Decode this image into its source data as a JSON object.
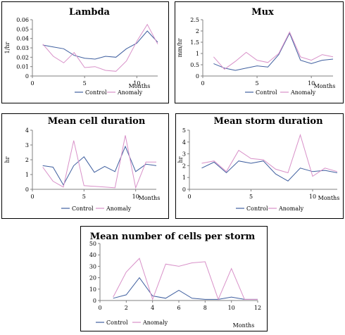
{
  "colors": {
    "control": "#3f5f9f",
    "anomaly": "#d890c8",
    "frame": "#000000",
    "axis": "#808080"
  },
  "chart_data": [
    {
      "type": "line",
      "title": "Lambda",
      "ylabel": "1/hr",
      "xlabel": "Months",
      "xlim": [
        0,
        12
      ],
      "ylim": [
        0,
        0.06
      ],
      "xticks": [
        0,
        5,
        10
      ],
      "xtick_labels": [
        "0",
        "5",
        "10"
      ],
      "yticks": [
        0,
        0.01,
        0.02,
        0.03,
        0.04,
        0.05,
        0.06
      ],
      "ytick_labels": [
        "0",
        "0.01",
        "0.02",
        "0.03",
        "0.04",
        "0.05",
        "0.06"
      ],
      "x": [
        1,
        2,
        3,
        4,
        5,
        6,
        7,
        8,
        9,
        10,
        11,
        12
      ],
      "legend_position": "bottom",
      "series": [
        {
          "name": "Control",
          "color_key": "control",
          "values": [
            0.033,
            0.031,
            0.029,
            0.022,
            0.019,
            0.018,
            0.021,
            0.02,
            0.029,
            0.035,
            0.048,
            0.036
          ]
        },
        {
          "name": "Anomaly",
          "color_key": "anomaly",
          "values": [
            0.034,
            0.021,
            0.014,
            0.025,
            0.009,
            0.01,
            0.006,
            0.005,
            0.016,
            0.037,
            0.055,
            0.034
          ]
        }
      ]
    },
    {
      "type": "line",
      "title": "Mux",
      "ylabel": "mm/hr",
      "xlabel": "Months",
      "xlim": [
        0,
        12
      ],
      "ylim": [
        0,
        2.5
      ],
      "xticks": [
        0,
        5,
        10
      ],
      "xtick_labels": [
        "0",
        "5",
        "10"
      ],
      "yticks": [
        0,
        0.5,
        1,
        1.5,
        2,
        2.5
      ],
      "ytick_labels": [
        "0",
        "0.5",
        "1",
        "1.5",
        "2",
        "2.5"
      ],
      "x": [
        1,
        2,
        3,
        4,
        5,
        6,
        7,
        8,
        9,
        10,
        11,
        12
      ],
      "legend_position": "bottom",
      "series": [
        {
          "name": "Control",
          "color_key": "control",
          "values": [
            0.55,
            0.35,
            0.25,
            0.35,
            0.45,
            0.4,
            0.95,
            1.9,
            0.7,
            0.55,
            0.7,
            0.75
          ]
        },
        {
          "name": "Anomaly",
          "color_key": "anomaly",
          "values": [
            0.85,
            0.3,
            0.65,
            1.05,
            0.7,
            0.6,
            1.0,
            1.95,
            0.85,
            0.7,
            0.95,
            0.85
          ]
        }
      ]
    },
    {
      "type": "line",
      "title": "Mean cell duration",
      "ylabel": "hr",
      "xlabel": "Months",
      "xlim": [
        0,
        12
      ],
      "ylim": [
        0,
        4
      ],
      "xticks": [
        0,
        5,
        10
      ],
      "xtick_labels": [
        "0",
        "5",
        "10"
      ],
      "yticks": [
        0,
        1,
        2,
        3,
        4
      ],
      "ytick_labels": [
        "0",
        "1",
        "2",
        "3",
        "4"
      ],
      "x": [
        1,
        2,
        3,
        4,
        5,
        6,
        7,
        8,
        9,
        10,
        11,
        12
      ],
      "legend_position": "bottom",
      "series": [
        {
          "name": "Control",
          "color_key": "control",
          "values": [
            1.6,
            1.5,
            0.3,
            1.6,
            2.2,
            1.15,
            1.55,
            1.2,
            2.9,
            1.2,
            1.7,
            1.6
          ]
        },
        {
          "name": "Anomaly",
          "color_key": "anomaly",
          "values": [
            1.5,
            0.55,
            0.15,
            3.3,
            0.25,
            0.2,
            0.15,
            0.1,
            3.65,
            0.1,
            1.85,
            1.85
          ]
        }
      ]
    },
    {
      "type": "line",
      "title": "Mean storm duration",
      "ylabel": "hr",
      "xlabel": "Months",
      "xlim": [
        0,
        12
      ],
      "ylim": [
        0,
        5
      ],
      "xticks": [
        0,
        5,
        10
      ],
      "xtick_labels": [
        "0",
        "5",
        "10"
      ],
      "yticks": [
        0,
        1,
        2,
        3,
        4,
        5
      ],
      "ytick_labels": [
        "0",
        "1",
        "2",
        "3",
        "4",
        "5"
      ],
      "x": [
        1,
        2,
        3,
        4,
        5,
        6,
        7,
        8,
        9,
        10,
        11,
        12
      ],
      "legend_position": "bottom",
      "series": [
        {
          "name": "Control",
          "color_key": "control",
          "values": [
            1.8,
            2.3,
            1.4,
            2.4,
            2.2,
            2.4,
            1.3,
            0.7,
            1.8,
            1.5,
            1.6,
            1.4
          ]
        },
        {
          "name": "Anomaly",
          "color_key": "anomaly",
          "values": [
            2.2,
            2.4,
            1.5,
            3.3,
            2.6,
            2.5,
            1.7,
            1.4,
            4.6,
            1.1,
            1.8,
            1.5
          ]
        }
      ]
    },
    {
      "type": "line",
      "title": "Mean number of cells per storm",
      "ylabel": "",
      "xlabel": "Months",
      "xlim": [
        0,
        12
      ],
      "ylim": [
        0,
        50
      ],
      "xticks": [
        0,
        2,
        4,
        6,
        8,
        10,
        12
      ],
      "xtick_labels": [
        "0",
        "2",
        "4",
        "6",
        "8",
        "10",
        "12"
      ],
      "yticks": [
        0,
        10,
        20,
        30,
        40,
        50
      ],
      "ytick_labels": [
        "0",
        "10",
        "20",
        "30",
        "40",
        "50"
      ],
      "x": [
        1,
        2,
        3,
        4,
        5,
        6,
        7,
        8,
        9,
        10,
        11,
        12
      ],
      "legend_position": "bottom",
      "series": [
        {
          "name": "Control",
          "color_key": "control",
          "values": [
            2,
            5,
            20,
            4,
            2,
            9,
            2,
            1,
            1,
            3,
            1,
            1
          ]
        },
        {
          "name": "Anomaly",
          "color_key": "anomaly",
          "values": [
            3,
            25,
            37,
            1,
            32,
            30,
            33,
            34,
            1,
            28,
            1,
            1
          ]
        }
      ]
    }
  ]
}
